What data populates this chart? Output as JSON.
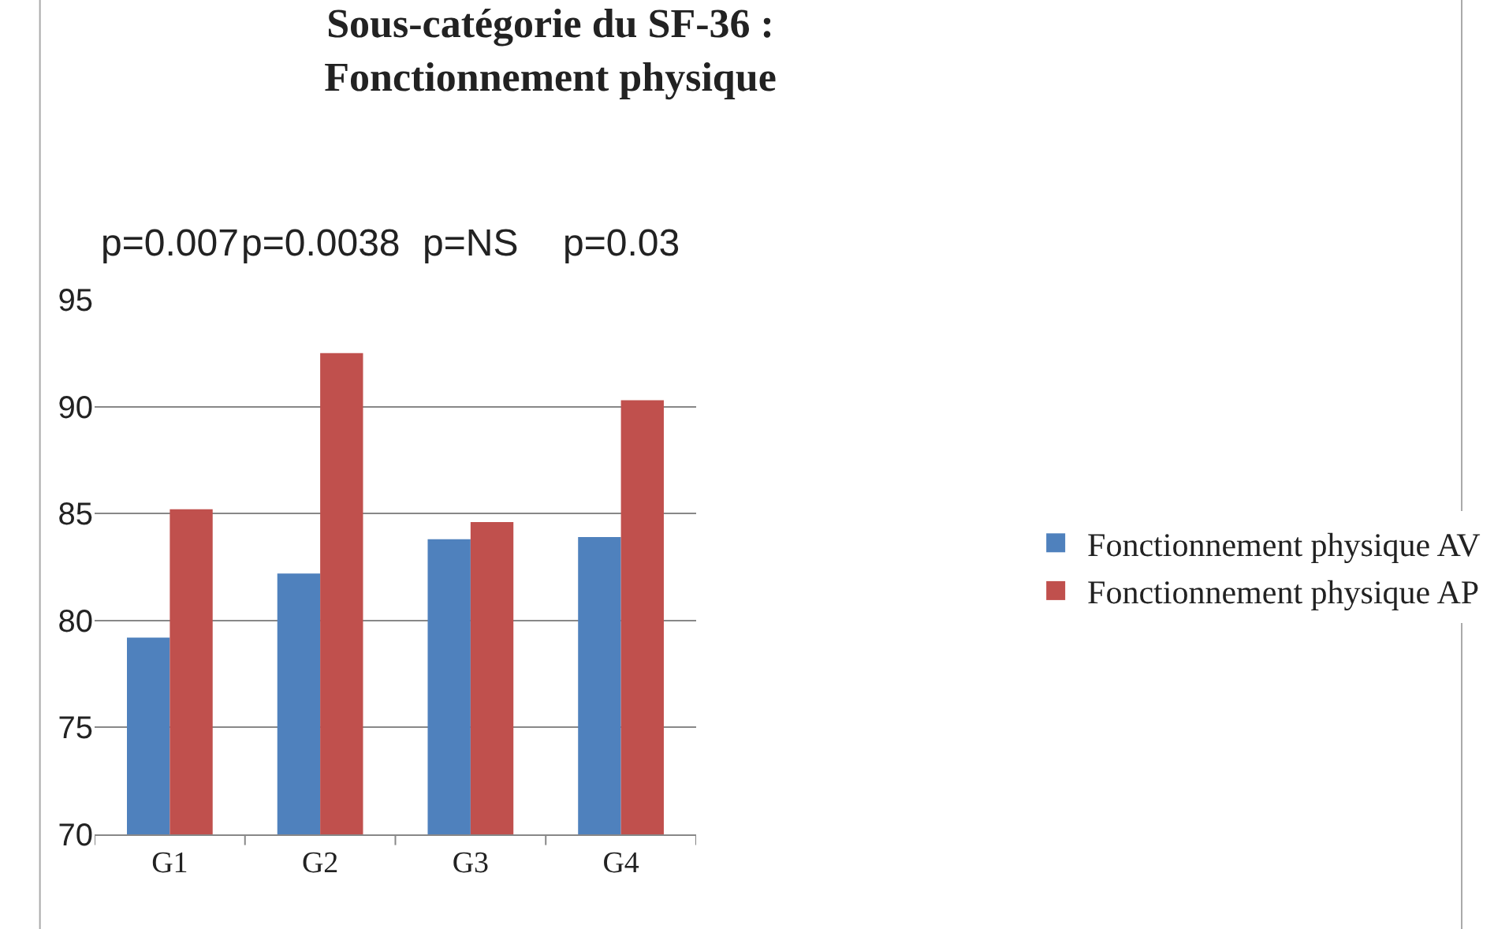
{
  "chart_data": {
    "type": "bar",
    "title": "Sous-catégorie du SF-36 :\nFonctionnement physique",
    "categories": [
      "G1",
      "G2",
      "G3",
      "G4"
    ],
    "series": [
      {
        "name": "Fonctionnement physique AV",
        "color": "#4f81bd",
        "values": [
          79.2,
          82.2,
          83.8,
          83.9
        ]
      },
      {
        "name": "Fonctionnement physique AP",
        "color": "#c0504d",
        "values": [
          85.2,
          92.5,
          84.6,
          90.3
        ]
      }
    ],
    "ylim": [
      70,
      95
    ],
    "yticks": [
      70,
      75,
      80,
      85,
      90,
      95
    ],
    "grid": "y",
    "legend": "right",
    "annotations": [
      "p=0.007",
      "p=0.0038",
      "p=NS",
      "p=0.03"
    ]
  }
}
